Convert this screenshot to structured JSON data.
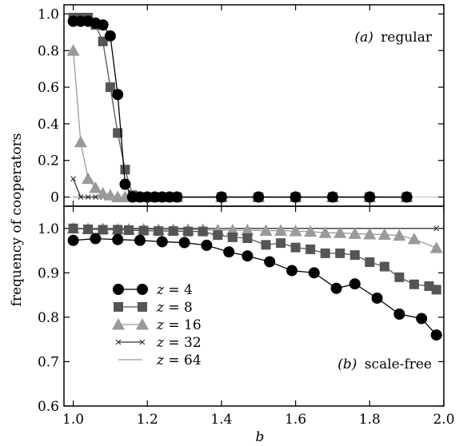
{
  "chart_data": {
    "type": "line",
    "ylabel": "frequency of cooperators",
    "xlabel": "b",
    "xlim": [
      0.975,
      2.0
    ],
    "x_ticks": [
      "1.0",
      "1.2",
      "1.4",
      "1.6",
      "1.8",
      "2.0"
    ],
    "panels": [
      {
        "id": "a",
        "label_letter": "(a)",
        "label_text": "regular",
        "label_position": "top-right",
        "ylim": [
          -0.05,
          1.05
        ],
        "y_ticks": [
          "0",
          "0.2",
          "0.4",
          "0.6",
          "0.8",
          "1.0"
        ],
        "series": [
          {
            "name": "z = 4",
            "marker": "circle",
            "color": "#000000",
            "x": [
              1.0,
              1.02,
              1.04,
              1.06,
              1.08,
              1.1,
              1.12,
              1.14,
              1.16,
              1.18,
              1.2,
              1.22,
              1.24,
              1.26,
              1.28,
              1.4,
              1.5,
              1.6,
              1.7,
              1.8,
              1.9
            ],
            "y": [
              0.96,
              0.96,
              0.96,
              0.95,
              0.94,
              0.88,
              0.56,
              0.07,
              0,
              0,
              0,
              0,
              0,
              0,
              0,
              0,
              0,
              0,
              0,
              0,
              0
            ]
          },
          {
            "name": "z = 8",
            "marker": "square",
            "color": "#555555",
            "x": [
              1.0,
              1.02,
              1.04,
              1.06,
              1.08,
              1.1,
              1.12,
              1.14,
              1.16,
              1.18,
              1.2,
              1.22,
              1.24,
              1.26,
              1.28,
              1.4,
              1.5,
              1.6,
              1.7,
              1.8,
              1.9
            ],
            "y": [
              0.98,
              0.98,
              0.98,
              0.94,
              0.85,
              0.6,
              0.35,
              0.15,
              0.01,
              0,
              0,
              0,
              0,
              0,
              0,
              0,
              0,
              0,
              0,
              0,
              0
            ]
          },
          {
            "name": "z = 16",
            "marker": "triangle",
            "color": "#9a9a9a",
            "x": [
              1.0,
              1.02,
              1.04,
              1.06,
              1.08,
              1.1,
              1.12,
              1.14,
              1.16,
              1.18,
              1.2,
              1.22,
              1.24,
              1.26,
              1.28,
              1.4,
              1.5,
              1.6,
              1.7,
              1.8,
              1.9
            ],
            "y": [
              0.8,
              0.3,
              0.1,
              0.05,
              0.02,
              0.01,
              0,
              0,
              0,
              0,
              0,
              0,
              0,
              0,
              0,
              0,
              0,
              0,
              0,
              0,
              0
            ]
          },
          {
            "name": "z = 32",
            "marker": "x",
            "color": "#333333",
            "x": [
              1.0,
              1.02,
              1.04,
              1.06,
              1.08,
              1.1,
              1.12,
              1.14,
              1.16,
              1.18,
              1.2,
              1.22,
              1.24,
              1.26,
              1.28,
              1.4,
              1.5,
              1.6,
              1.7,
              1.8,
              1.9
            ],
            "y": [
              0.1,
              0,
              0,
              0,
              0,
              0,
              0,
              0,
              0,
              0,
              0,
              0,
              0,
              0,
              0,
              0,
              0,
              0,
              0,
              0,
              0
            ]
          },
          {
            "name": "z = 64",
            "marker": "none",
            "color": "#9a9a9a",
            "x": [
              1.0,
              1.02,
              1.04,
              1.06,
              1.08,
              1.1,
              1.12,
              1.14,
              1.16,
              1.18,
              1.2,
              1.22,
              1.24,
              1.26,
              1.28,
              1.4,
              1.5,
              1.6,
              1.7,
              1.8,
              1.9
            ],
            "y": [
              0,
              0,
              0,
              0,
              0,
              0,
              0,
              0,
              0,
              0,
              0,
              0,
              0,
              0,
              0,
              0,
              0,
              0,
              0,
              0,
              0
            ]
          }
        ]
      },
      {
        "id": "b",
        "label_letter": "(b)",
        "label_text": "scale-free",
        "label_position": "bottom-right",
        "ylim": [
          0.6,
          1.05
        ],
        "y_ticks": [
          "0.6",
          "0.7",
          "0.8",
          "0.9",
          "1.0"
        ],
        "series": [
          {
            "name": "z = 4",
            "marker": "circle",
            "color": "#000000",
            "x": [
              1.0,
              1.06,
              1.12,
              1.18,
              1.24,
              1.3,
              1.36,
              1.42,
              1.47,
              1.53,
              1.59,
              1.65,
              1.71,
              1.76,
              1.82,
              1.88,
              1.94,
              1.98
            ],
            "y": [
              0.973,
              0.977,
              0.975,
              0.973,
              0.97,
              0.968,
              0.962,
              0.947,
              0.938,
              0.925,
              0.905,
              0.9,
              0.865,
              0.875,
              0.843,
              0.807,
              0.797,
              0.76
            ]
          },
          {
            "name": "z = 8",
            "marker": "square",
            "color": "#555555",
            "x": [
              1.0,
              1.04,
              1.08,
              1.12,
              1.15,
              1.19,
              1.23,
              1.27,
              1.31,
              1.35,
              1.39,
              1.43,
              1.47,
              1.52,
              1.56,
              1.6,
              1.64,
              1.68,
              1.72,
              1.76,
              1.8,
              1.84,
              1.88,
              1.92,
              1.96,
              1.98
            ],
            "y": [
              1.0,
              0.998,
              0.997,
              0.997,
              0.996,
              0.995,
              0.994,
              0.994,
              0.993,
              0.993,
              0.985,
              0.98,
              0.978,
              0.963,
              0.967,
              0.957,
              0.953,
              0.944,
              0.944,
              0.94,
              0.924,
              0.914,
              0.89,
              0.874,
              0.87,
              0.862
            ]
          },
          {
            "name": "z = 16",
            "marker": "triangle",
            "color": "#9a9a9a",
            "x": [
              1.0,
              1.04,
              1.08,
              1.12,
              1.15,
              1.19,
              1.23,
              1.27,
              1.31,
              1.35,
              1.39,
              1.43,
              1.47,
              1.52,
              1.56,
              1.6,
              1.64,
              1.68,
              1.72,
              1.76,
              1.8,
              1.84,
              1.88,
              1.92,
              1.98
            ],
            "y": [
              1.0,
              0.999,
              0.999,
              0.998,
              0.998,
              0.998,
              0.997,
              0.997,
              0.997,
              0.997,
              0.996,
              0.996,
              0.996,
              0.995,
              0.995,
              0.994,
              0.993,
              0.99,
              0.99,
              0.988,
              0.987,
              0.986,
              0.984,
              0.976,
              0.956
            ]
          },
          {
            "name": "z = 32",
            "marker": "x",
            "color": "#333333",
            "x": [
              1.0,
              1.98
            ],
            "y": [
              1.0,
              1.0
            ]
          },
          {
            "name": "z = 64",
            "marker": "none",
            "color": "#9a9a9a",
            "x": [
              1.0,
              1.98
            ],
            "y": [
              1.0,
              1.0
            ]
          }
        ]
      }
    ],
    "legend": {
      "position": "lower-left of panel b",
      "entries": [
        {
          "name_prefix": "z",
          "name_value": "= 4",
          "marker": "circle",
          "color": "#000000"
        },
        {
          "name_prefix": "z",
          "name_value": "= 8",
          "marker": "square",
          "color": "#555555"
        },
        {
          "name_prefix": "z",
          "name_value": "= 16",
          "marker": "triangle",
          "color": "#9a9a9a"
        },
        {
          "name_prefix": "z",
          "name_value": "= 32",
          "marker": "x",
          "color": "#333333"
        },
        {
          "name_prefix": "z",
          "name_value": "= 64",
          "marker": "none",
          "color": "#9a9a9a"
        }
      ]
    }
  }
}
